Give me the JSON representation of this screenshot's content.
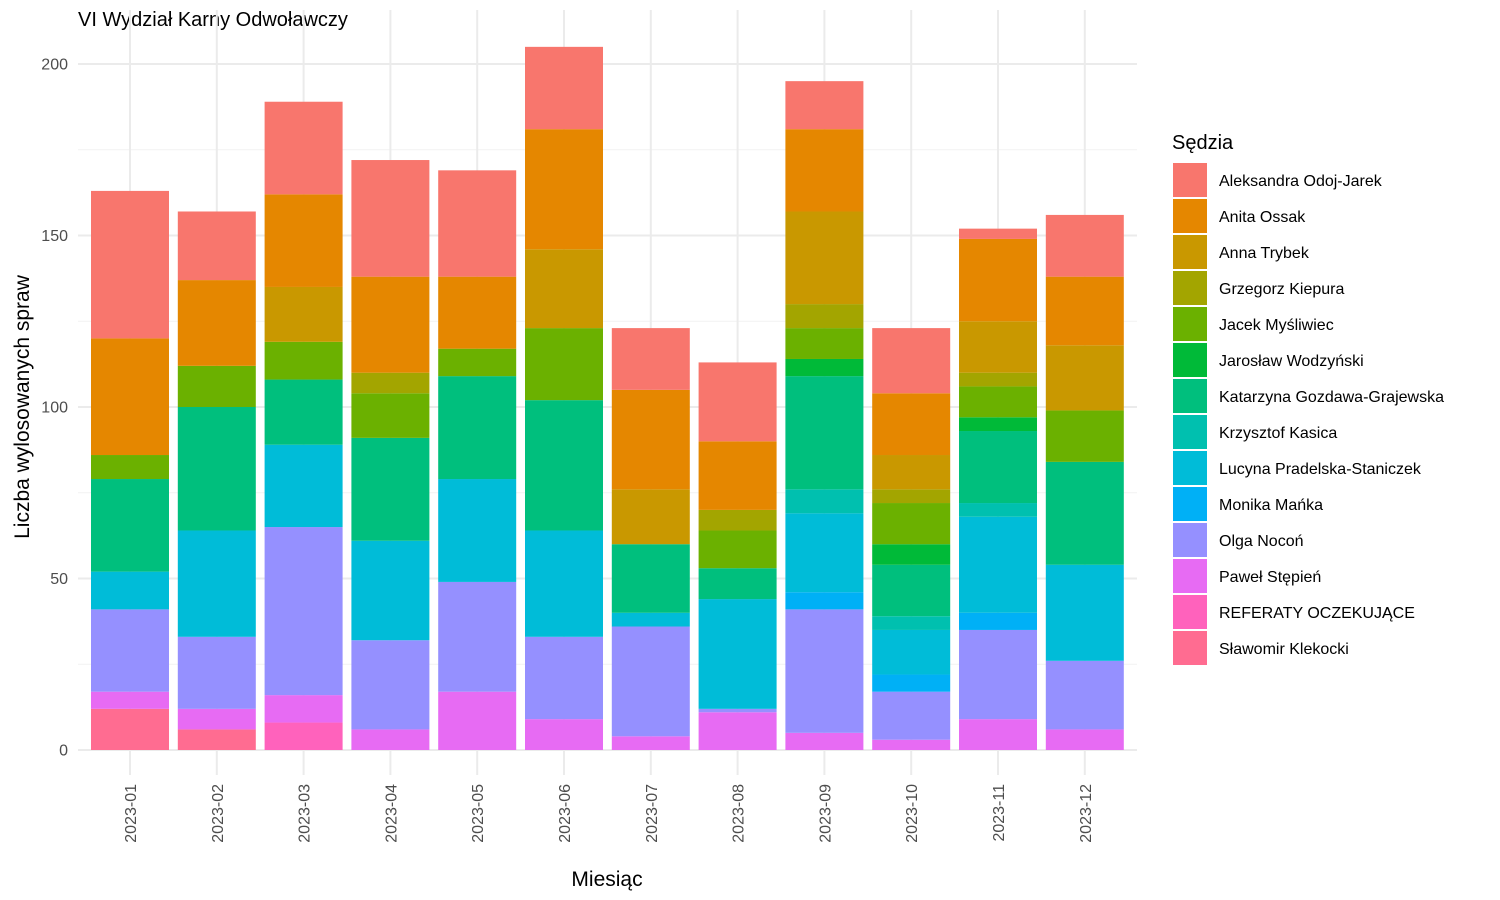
{
  "chart_data": {
    "type": "bar",
    "stacked": true,
    "title": "VI Wydział Karny Odwoławczy",
    "xlabel": "Miesiąc",
    "ylabel": "Liczba wylosowanych spraw",
    "legend_title": "Sędzia",
    "legend_position": "right",
    "grid": true,
    "ylim": [
      0,
      210
    ],
    "yticks": [
      0,
      50,
      100,
      150,
      200
    ],
    "categories": [
      "2023-01",
      "2023-02",
      "2023-03",
      "2023-04",
      "2023-05",
      "2023-06",
      "2023-07",
      "2023-08",
      "2023-09",
      "2023-10",
      "2023-11",
      "2023-12"
    ],
    "series": [
      {
        "name": "Aleksandra Odoj-Jarek",
        "color": "#F8766D",
        "values": [
          43,
          20,
          27,
          34,
          31,
          24,
          18,
          23,
          14,
          19,
          3,
          18
        ]
      },
      {
        "name": "Anita Ossak",
        "color": "#E58700",
        "values": [
          34,
          25,
          27,
          28,
          21,
          35,
          29,
          20,
          24,
          18,
          24,
          20
        ]
      },
      {
        "name": "Anna Trybek",
        "color": "#C99800",
        "values": [
          0,
          0,
          16,
          0,
          0,
          23,
          16,
          0,
          27,
          10,
          15,
          19
        ]
      },
      {
        "name": "Grzegorz Kiepura",
        "color": "#A3A500",
        "values": [
          0,
          0,
          0,
          6,
          0,
          0,
          0,
          6,
          7,
          4,
          4,
          0
        ]
      },
      {
        "name": "Jacek Myśliwiec",
        "color": "#6BB100",
        "values": [
          7,
          12,
          11,
          13,
          8,
          21,
          0,
          11,
          9,
          12,
          9,
          15
        ]
      },
      {
        "name": "Jarosław Wodzyński",
        "color": "#00BA38",
        "values": [
          0,
          0,
          0,
          0,
          0,
          0,
          0,
          0,
          5,
          6,
          4,
          0
        ]
      },
      {
        "name": "Katarzyna Gozdawa-Grajewska",
        "color": "#00BF7D",
        "values": [
          27,
          36,
          19,
          30,
          30,
          38,
          20,
          9,
          33,
          15,
          21,
          30
        ]
      },
      {
        "name": "Krzysztof Kasica",
        "color": "#00C0AF",
        "values": [
          0,
          0,
          0,
          0,
          0,
          0,
          0,
          0,
          7,
          4,
          4,
          0
        ]
      },
      {
        "name": "Lucyna Pradelska-Staniczek",
        "color": "#00BCD8",
        "values": [
          11,
          31,
          24,
          29,
          30,
          31,
          4,
          32,
          23,
          13,
          28,
          28
        ]
      },
      {
        "name": "Monika Mańka",
        "color": "#00B0F6",
        "values": [
          0,
          0,
          0,
          0,
          0,
          0,
          0,
          0,
          5,
          5,
          5,
          0
        ]
      },
      {
        "name": "Olga Nocoń",
        "color": "#9590FF",
        "values": [
          24,
          21,
          49,
          26,
          32,
          24,
          32,
          1,
          36,
          14,
          26,
          20
        ]
      },
      {
        "name": "Paweł Stępień",
        "color": "#E76BF3",
        "values": [
          5,
          6,
          8,
          6,
          17,
          9,
          4,
          11,
          5,
          3,
          9,
          6
        ]
      },
      {
        "name": "REFERATY OCZEKUJĄCE",
        "color": "#FF62BC",
        "values": [
          0,
          0,
          8,
          0,
          0,
          0,
          0,
          0,
          0,
          0,
          0,
          0
        ]
      },
      {
        "name": "Sławomir Klekocki",
        "color": "#FF6C91",
        "values": [
          12,
          6,
          0,
          0,
          0,
          0,
          0,
          0,
          0,
          0,
          0,
          0
        ]
      }
    ]
  }
}
